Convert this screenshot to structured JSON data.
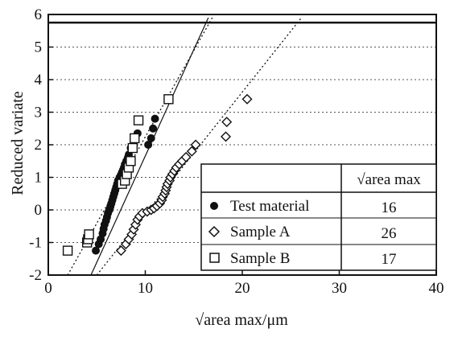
{
  "chart_data": {
    "type": "scatter",
    "xlabel": "√area max/μm",
    "ylabel": "Reduced variate",
    "xlim": [
      0,
      40
    ],
    "ylim": [
      -2,
      6
    ],
    "x_ticks": [
      "0",
      "10",
      "20",
      "30",
      "40"
    ],
    "y_ticks": [
      "-2",
      "-1",
      "0",
      "1",
      "2",
      "3",
      "4",
      "5",
      "6"
    ],
    "grid": "horizontal dotted",
    "reference_line_y": 5.75,
    "legend": {
      "placement": "bottom-right",
      "header": "√area max",
      "rows": [
        {
          "label": "Test material",
          "marker": "filled-circle",
          "value": "16"
        },
        {
          "label": "Sample A",
          "marker": "open-diamond",
          "value": "26"
        },
        {
          "label": "Sample B",
          "marker": "open-square",
          "value": "17"
        }
      ]
    },
    "series": [
      {
        "name": "Test material",
        "marker": "filled-circle",
        "points": [
          [
            4.9,
            -1.25
          ],
          [
            5.2,
            -1.05
          ],
          [
            5.4,
            -0.9
          ],
          [
            5.6,
            -0.72
          ],
          [
            5.7,
            -0.58
          ],
          [
            5.8,
            -0.45
          ],
          [
            5.95,
            -0.33
          ],
          [
            6.05,
            -0.22
          ],
          [
            6.15,
            -0.1
          ],
          [
            6.3,
            0.0
          ],
          [
            6.4,
            0.1
          ],
          [
            6.5,
            0.2
          ],
          [
            6.6,
            0.3
          ],
          [
            6.7,
            0.4
          ],
          [
            6.8,
            0.5
          ],
          [
            6.9,
            0.6
          ],
          [
            7.0,
            0.7
          ],
          [
            7.1,
            0.8
          ],
          [
            7.2,
            0.9
          ],
          [
            7.35,
            1.0
          ],
          [
            7.5,
            1.08
          ],
          [
            7.6,
            1.15
          ],
          [
            7.7,
            1.22
          ],
          [
            7.8,
            1.3
          ],
          [
            7.9,
            1.4
          ],
          [
            8.05,
            1.5
          ],
          [
            8.2,
            1.6
          ],
          [
            8.3,
            1.7
          ],
          [
            8.5,
            1.9
          ],
          [
            9.2,
            2.35
          ],
          [
            10.3,
            2.0
          ],
          [
            10.6,
            2.2
          ],
          [
            10.8,
            2.5
          ],
          [
            11.0,
            2.8
          ],
          [
            12.4,
            3.4
          ]
        ]
      },
      {
        "name": "Sample A",
        "marker": "open-diamond",
        "points": [
          [
            7.5,
            -1.25
          ],
          [
            8.0,
            -1.05
          ],
          [
            8.3,
            -0.9
          ],
          [
            8.6,
            -0.75
          ],
          [
            8.8,
            -0.6
          ],
          [
            9.0,
            -0.45
          ],
          [
            9.2,
            -0.3
          ],
          [
            9.4,
            -0.2
          ],
          [
            9.7,
            -0.1
          ],
          [
            10.2,
            -0.05
          ],
          [
            10.6,
            0.0
          ],
          [
            10.9,
            0.05
          ],
          [
            11.2,
            0.12
          ],
          [
            11.5,
            0.2
          ],
          [
            11.7,
            0.3
          ],
          [
            11.8,
            0.4
          ],
          [
            12.0,
            0.5
          ],
          [
            12.1,
            0.6
          ],
          [
            12.2,
            0.7
          ],
          [
            12.3,
            0.8
          ],
          [
            12.5,
            0.9
          ],
          [
            12.6,
            1.0
          ],
          [
            12.8,
            1.1
          ],
          [
            13.0,
            1.2
          ],
          [
            13.2,
            1.3
          ],
          [
            13.5,
            1.4
          ],
          [
            13.8,
            1.5
          ],
          [
            14.2,
            1.62
          ],
          [
            14.8,
            1.8
          ],
          [
            15.2,
            2.0
          ],
          [
            18.3,
            2.25
          ],
          [
            18.4,
            2.7
          ],
          [
            20.5,
            3.4
          ]
        ]
      },
      {
        "name": "Sample B",
        "marker": "open-square",
        "points": [
          [
            2.0,
            -1.25
          ],
          [
            4.0,
            -1.0
          ],
          [
            4.1,
            -0.9
          ],
          [
            4.2,
            -0.75
          ],
          [
            7.6,
            0.8
          ],
          [
            7.9,
            0.9
          ],
          [
            8.1,
            1.1
          ],
          [
            8.3,
            1.3
          ],
          [
            8.5,
            1.5
          ],
          [
            8.7,
            1.9
          ],
          [
            8.9,
            2.2
          ],
          [
            9.3,
            2.75
          ],
          [
            12.4,
            3.4
          ]
        ]
      }
    ],
    "fit_lines": [
      {
        "name": "Test material",
        "style": "solid",
        "x": [
          4.4,
          16.5
        ],
        "y": [
          -2.0,
          5.9
        ]
      },
      {
        "name": "Sample B",
        "style": "dotted",
        "x": [
          2.0,
          16.9
        ],
        "y": [
          -2.0,
          5.9
        ]
      },
      {
        "name": "Sample A",
        "style": "dotted",
        "x": [
          5.0,
          26.1
        ],
        "y": [
          -2.0,
          5.9
        ]
      }
    ]
  }
}
